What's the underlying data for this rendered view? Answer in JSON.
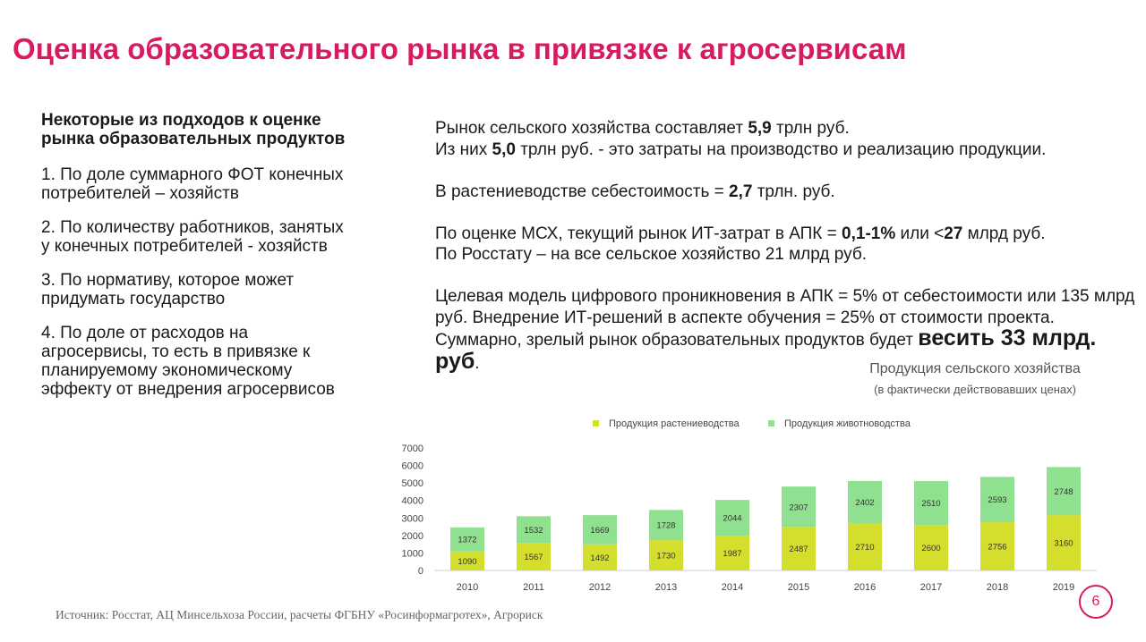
{
  "title": "Оценка образовательного рынка в привязке к агросервисам",
  "left": {
    "heading": "Некоторые из подходов к оценке рынка образовательных продуктов",
    "items": [
      "1. По доле суммарного ФОТ конечных потребителей – хозяйств",
      "2. По количеству работников, занятых у конечных потребителей - хозяйств",
      "3. По нормативу, которое может придумать государство",
      "4. По доле от расходов на агросервисы, то есть в привязке к планируемому экономическому эффекту от внедрения агросервисов"
    ]
  },
  "right": {
    "p1": {
      "a1": "Рынок сельского хозяйства составляет ",
      "b1": "5,9",
      "a2": " трлн руб.",
      "a3": "Из них ",
      "b2": "5,0",
      "a4": " трлн руб. - это затраты на производство и реализацию продукции."
    },
    "p2": {
      "a1": "В растениеводстве себестоимость = ",
      "b1": "2,7",
      "a2": " трлн. руб."
    },
    "p3": {
      "a1": "По оценке МСХ, текущий рынок ИТ-затрат в АПК = ",
      "b1": "0,1-1%",
      "a2": " или <",
      "b2": "27",
      "a3": " млрд руб.",
      "a4": "По Росстату – на все сельское хозяйство 21 млрд руб."
    },
    "p4": {
      "a1": "Целевая модель цифрового проникновения в АПК = 5% от себестоимости или 135 млрд руб. Внедрение ИТ-решений в аспекте обучения = 25% от стоимости проекта. Суммарно, зрелый рынок образовательных продуктов будет ",
      "b1": "весить  33 млрд. руб",
      "a2": "."
    }
  },
  "chart_data": {
    "type": "bar",
    "stacked": true,
    "title": "Продукция сельского хозяйства",
    "subtitle": "(в фактически действовавших ценах)",
    "categories": [
      "2010",
      "2011",
      "2012",
      "2013",
      "2014",
      "2015",
      "2016",
      "2017",
      "2018",
      "2019"
    ],
    "series": [
      {
        "name": "Продукция растениеводства",
        "values": [
          1090,
          1567,
          1492,
          1730,
          1987,
          2487,
          2710,
          2600,
          2756,
          3160
        ],
        "color": "#d4de2c"
      },
      {
        "name": "Продукция животноводства",
        "values": [
          1372,
          1532,
          1669,
          1728,
          2044,
          2307,
          2402,
          2510,
          2593,
          2748
        ],
        "color": "#8fe08f"
      }
    ],
    "yticks": [
      "0",
      "1000",
      "2000",
      "3000",
      "4000",
      "5000",
      "6000",
      "7000"
    ],
    "ylim": [
      0,
      7000
    ],
    "legend": "top",
    "grid": false
  },
  "source": "Источник: Росстат, АЦ Минсельхоза России, расчеты ФГБНУ «Росинформагротех», Агрориск",
  "page_number": "6",
  "colors": {
    "accent": "#d81b60",
    "crops": "#d4de2c",
    "livestock": "#8fe08f"
  }
}
